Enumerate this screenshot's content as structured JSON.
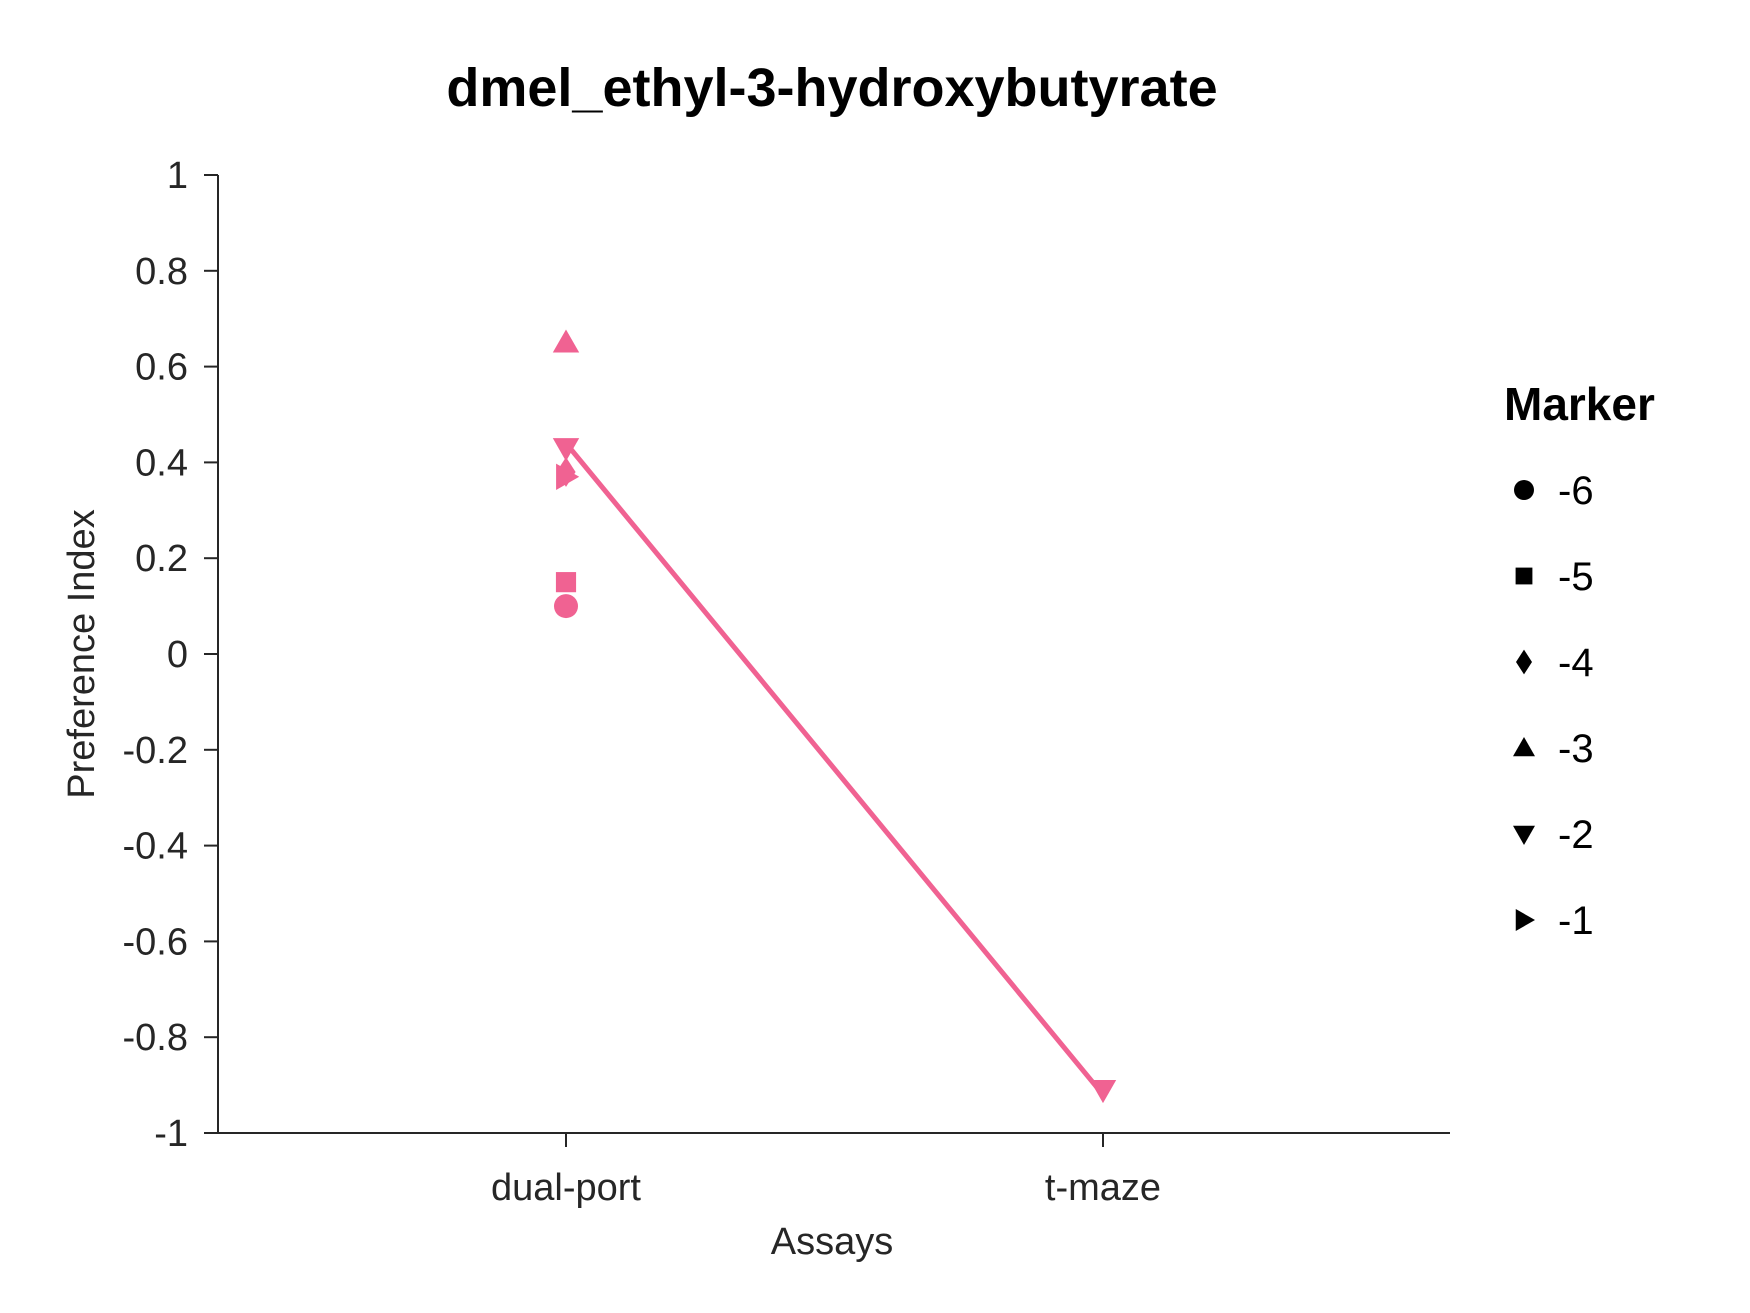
{
  "chart_data": {
    "type": "scatter",
    "title": "dmel_ethyl-3-hydroxybutyrate",
    "xlabel": "Assays",
    "ylabel": "Preference Index",
    "categories": [
      "dual-port",
      "t-maze"
    ],
    "ylim": [
      -1,
      1
    ],
    "yticks": [
      1,
      0.8,
      0.6,
      0.4,
      0.2,
      0,
      -0.2,
      -0.4,
      -0.6,
      -0.8,
      -1
    ],
    "ytick_labels": [
      "1",
      "0.8",
      "0.6",
      "0.4",
      "0.2",
      "0",
      "-0.2",
      "-0.4",
      "-0.6",
      "-0.8",
      "-1"
    ],
    "grid": false,
    "series_color": "#f06292",
    "points": [
      {
        "x": "dual-port",
        "y": 0.1,
        "marker": "circle"
      },
      {
        "x": "dual-port",
        "y": 0.15,
        "marker": "square"
      },
      {
        "x": "dual-port",
        "y": 0.38,
        "marker": "diamond"
      },
      {
        "x": "dual-port",
        "y": 0.65,
        "marker": "triangle-up"
      },
      {
        "x": "dual-port",
        "y": 0.43,
        "marker": "triangle-down"
      },
      {
        "x": "dual-port",
        "y": 0.37,
        "marker": "triangle-right"
      },
      {
        "x": "t-maze",
        "y": -0.91,
        "marker": "triangle-down"
      }
    ],
    "line": {
      "marker": "triangle-down",
      "x": [
        "dual-port",
        "t-maze"
      ],
      "y": [
        0.44,
        -0.92
      ]
    },
    "legend": {
      "title": "Marker",
      "placement": "right",
      "entries": [
        {
          "label": "-6",
          "marker": "circle"
        },
        {
          "label": "-5",
          "marker": "square"
        },
        {
          "label": "-4",
          "marker": "diamond"
        },
        {
          "label": "-3",
          "marker": "triangle-up"
        },
        {
          "label": "-2",
          "marker": "triangle-down"
        },
        {
          "label": "-1",
          "marker": "triangle-right"
        }
      ]
    }
  }
}
